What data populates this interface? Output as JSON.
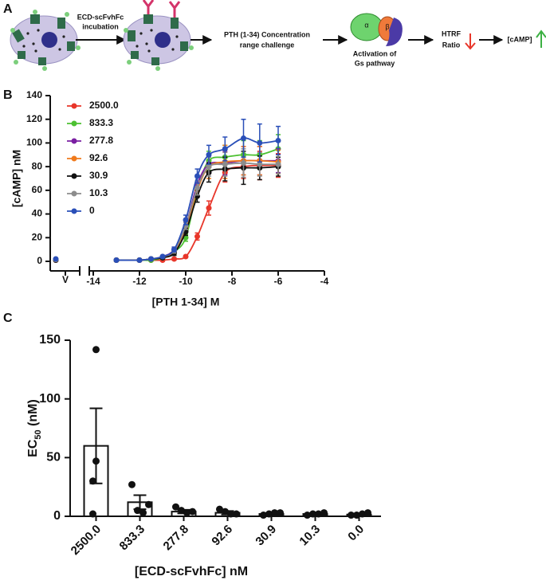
{
  "diagram": {
    "label": "A",
    "steps": [
      "ECD-scFvhFc",
      "incubation",
      "PTH (1-34) Concentration",
      "range challenge",
      "Activation of",
      "Gs pathway",
      "HTRF",
      "Ratio",
      "[cAMP]"
    ],
    "subunits": [
      "α",
      "β"
    ]
  },
  "chart_data": [
    {
      "type": "line",
      "panel_label": "B",
      "ylabel": "[cAMP] nM",
      "xlabel": "[PTH 1-34] M",
      "vehicle_label": "V",
      "x": [
        -13,
        -12,
        -11.5,
        -11,
        -10.5,
        -10,
        -9.5,
        -9,
        -8.3,
        -7.5,
        -6.8,
        -6
      ],
      "xlim": [
        -14,
        -4
      ],
      "xticks": [
        -14,
        -12,
        -10,
        -8,
        -6,
        -4
      ],
      "ylim": [
        0,
        140
      ],
      "yticks": [
        0,
        20,
        40,
        60,
        80,
        100,
        120,
        140
      ],
      "legend": "top-left",
      "series": [
        {
          "name": "2500.0",
          "color": "#e8362a",
          "vehicle": 1,
          "values": [
            1,
            1,
            1,
            1,
            2,
            4,
            21,
            45,
            75,
            80,
            81,
            81
          ],
          "errors": [
            0.5,
            0.5,
            0.5,
            0.5,
            1,
            1,
            3,
            6,
            8,
            10,
            12,
            10
          ]
        },
        {
          "name": "833.3",
          "color": "#4cc131",
          "vehicle": 1.5,
          "values": [
            1,
            1,
            1,
            3,
            8,
            20,
            60,
            85,
            88,
            90,
            90,
            95
          ],
          "errors": [
            0.5,
            0.5,
            0.5,
            1,
            2,
            3,
            6,
            8,
            10,
            12,
            12,
            12
          ]
        },
        {
          "name": "277.8",
          "color": "#7a1fa2",
          "vehicle": 1.5,
          "values": [
            1,
            1,
            2,
            4,
            10,
            30,
            65,
            82,
            83,
            85,
            85,
            85
          ],
          "errors": [
            0.5,
            0.5,
            0.5,
            1,
            2,
            3,
            6,
            8,
            10,
            12,
            12,
            10
          ]
        },
        {
          "name": "92.6",
          "color": "#f07a1c",
          "vehicle": 1.5,
          "values": [
            1,
            1,
            2,
            3,
            8,
            28,
            60,
            80,
            84,
            85,
            85,
            84
          ],
          "errors": [
            0.5,
            0.5,
            0.5,
            1,
            2,
            3,
            6,
            10,
            14,
            12,
            12,
            10
          ]
        },
        {
          "name": "30.9",
          "color": "#111111",
          "vehicle": 1,
          "values": [
            1,
            1,
            2,
            3,
            7,
            25,
            55,
            75,
            78,
            79,
            79,
            80
          ],
          "errors": [
            0.5,
            0.5,
            0.5,
            1,
            2,
            3,
            5,
            8,
            10,
            14,
            10,
            8
          ]
        },
        {
          "name": "10.3",
          "color": "#8c8c8c",
          "vehicle": 1.5,
          "values": [
            1,
            1,
            2,
            4,
            9,
            30,
            62,
            80,
            82,
            83,
            82,
            82
          ],
          "errors": [
            0.5,
            0.5,
            0.5,
            1,
            2,
            3,
            6,
            8,
            10,
            12,
            10,
            8
          ]
        },
        {
          "name": "0",
          "color": "#2a4fb8",
          "vehicle": 2,
          "values": [
            1,
            1,
            2,
            4,
            10,
            35,
            72,
            90,
            95,
            104,
            100,
            102
          ],
          "errors": [
            0.5,
            0.5,
            0.5,
            1,
            2,
            4,
            6,
            8,
            10,
            16,
            16,
            12
          ]
        }
      ]
    },
    {
      "type": "bar",
      "panel_label": "C",
      "ylabel": [
        "EC",
        "50",
        " (nM)"
      ],
      "xlabel": "[ECD-scFvhFc] nM",
      "categories": [
        "2500.0",
        "833.3",
        "277.8",
        "92.6",
        "30.9",
        "10.3",
        "0.0"
      ],
      "values": [
        60,
        12,
        4,
        3,
        2,
        2,
        1.5
      ],
      "errors": [
        32,
        6,
        1.5,
        1.5,
        0.8,
        0.6,
        0.6
      ],
      "points": [
        [
          142,
          47,
          30,
          2
        ],
        [
          27,
          5,
          3,
          10
        ],
        [
          8,
          5,
          3,
          4
        ],
        [
          6,
          4,
          2,
          2
        ],
        [
          1,
          2,
          3,
          3
        ],
        [
          1,
          2,
          2,
          3
        ],
        [
          1,
          1,
          2,
          3
        ]
      ],
      "color": "#ffffff",
      "ylim": [
        0,
        150
      ],
      "yticks": [
        0,
        50,
        100,
        150
      ]
    }
  ]
}
